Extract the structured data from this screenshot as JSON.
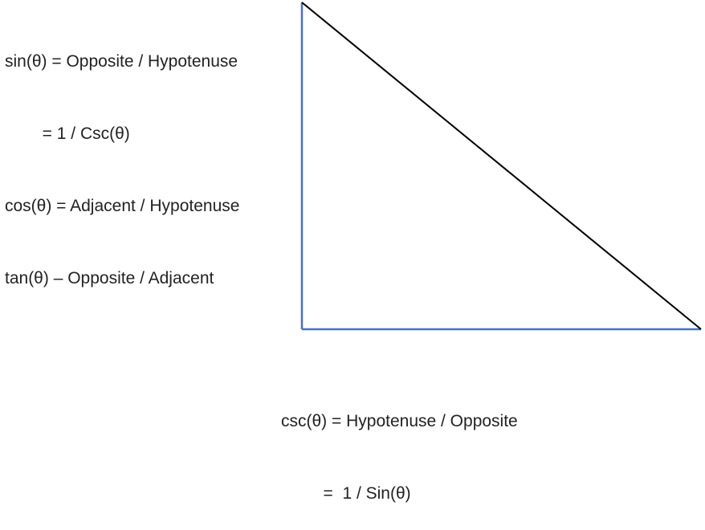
{
  "top_formulas": [
    "sin(θ) = Opposite / Hypotenuse",
    "        = 1 / Csc(θ)",
    "cos(θ) = Adjacent / Hypotenuse",
    "tan(θ) – Opposite / Adjacent"
  ],
  "bottom_formulas": [
    "csc(θ) = Hypotenuse / Opposite",
    "         =  1 / Sin(θ)"
  ],
  "colors": {
    "legs": "#4472c4",
    "hypotenuse": "#000000",
    "text": "#222222"
  }
}
